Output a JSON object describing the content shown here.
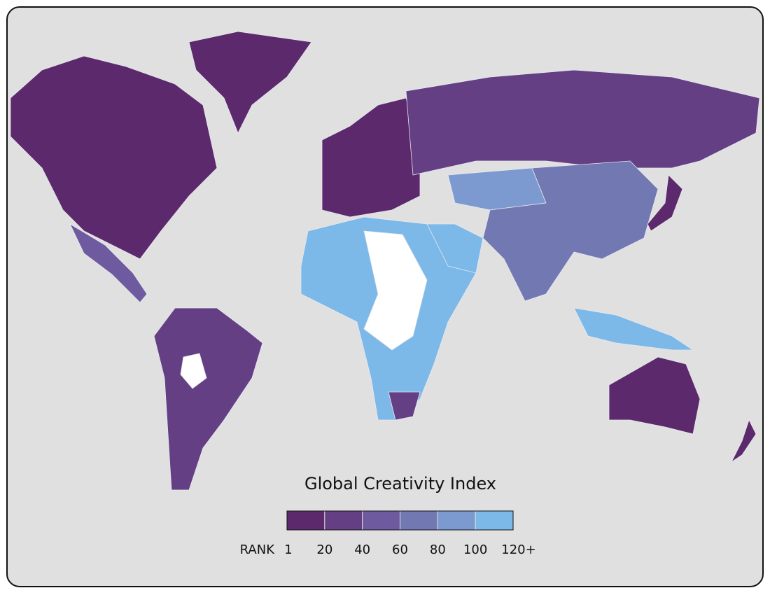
{
  "map": {
    "title": "Global Creativity Index",
    "legend": {
      "label": "RANK",
      "ticks": [
        "1",
        "20",
        "40",
        "60",
        "80",
        "100",
        "120+"
      ],
      "colors": [
        "#5c2a6c",
        "#643f84",
        "#6e5a9e",
        "#7278b2",
        "#7c9ad0",
        "#7cb9e8"
      ]
    }
  }
}
